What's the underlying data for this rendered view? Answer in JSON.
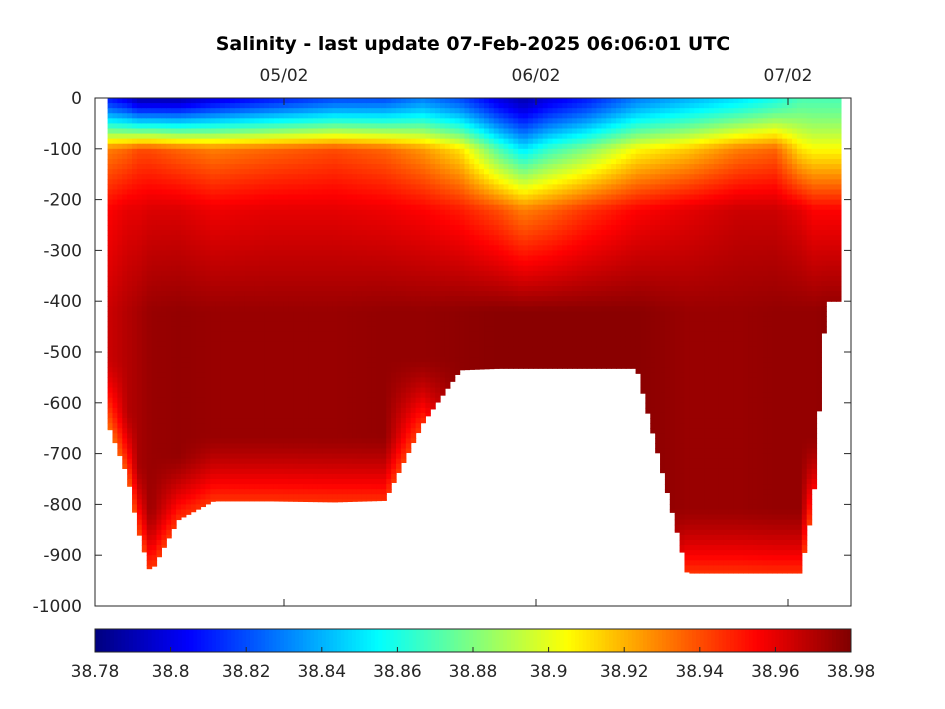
{
  "chart_data": {
    "type": "heatmap",
    "title": "Salinity - last update 07-Feb-2025 06:06:01 UTC",
    "x_axis": {
      "ticks": [
        {
          "label": "05/02",
          "value": 1.0
        },
        {
          "label": "06/02",
          "value": 2.0
        },
        {
          "label": "07/02",
          "value": 3.0
        }
      ],
      "range": [
        0.25,
        3.25
      ],
      "position": "top"
    },
    "y_axis": {
      "ticks": [
        0,
        -100,
        -200,
        -300,
        -400,
        -500,
        -600,
        -700,
        -800,
        -900,
        -1000
      ],
      "range": [
        -1000,
        0
      ],
      "label": ""
    },
    "colorbar": {
      "orientation": "horizontal",
      "position": "bottom",
      "colormap": "jet",
      "range": [
        38.78,
        38.98
      ],
      "ticks": [
        "38.78",
        "38.8",
        "38.82",
        "38.84",
        "38.86",
        "38.88",
        "38.9",
        "38.92",
        "38.94",
        "38.96",
        "38.98"
      ]
    },
    "profiles": [
      {
        "x": 0.3,
        "bottom": -640,
        "min": 38.81,
        "val100": 38.93,
        "val200": 38.955,
        "deep": 38.965
      },
      {
        "x": 0.38,
        "bottom": -745,
        "min": 38.8,
        "val100": 38.935,
        "val200": 38.96,
        "deep": 38.97
      },
      {
        "x": 0.42,
        "bottom": -850,
        "min": 38.79,
        "val100": 38.94,
        "val200": 38.96,
        "deep": 38.972
      },
      {
        "x": 0.47,
        "bottom": -935,
        "min": 38.79,
        "val100": 38.94,
        "val200": 38.962,
        "deep": 38.975
      },
      {
        "x": 0.58,
        "bottom": -830,
        "min": 38.79,
        "val100": 38.935,
        "val200": 38.962,
        "deep": 38.976
      },
      {
        "x": 0.72,
        "bottom": -793,
        "min": 38.8,
        "val100": 38.93,
        "val200": 38.958,
        "deep": 38.975
      },
      {
        "x": 0.95,
        "bottom": -793,
        "min": 38.81,
        "val100": 38.935,
        "val200": 38.96,
        "deep": 38.975
      },
      {
        "x": 1.2,
        "bottom": -795,
        "min": 38.82,
        "val100": 38.94,
        "val200": 38.96,
        "deep": 38.975
      },
      {
        "x": 1.4,
        "bottom": -792,
        "min": 38.82,
        "val100": 38.935,
        "val200": 38.958,
        "deep": 38.976
      },
      {
        "x": 1.55,
        "bottom": -640,
        "min": 38.83,
        "val100": 38.925,
        "val200": 38.955,
        "deep": 38.976
      },
      {
        "x": 1.7,
        "bottom": -535,
        "min": 38.82,
        "val100": 38.91,
        "val200": 38.95,
        "deep": 38.977
      },
      {
        "x": 1.85,
        "bottom": -532,
        "min": 38.8,
        "val100": 38.87,
        "val200": 38.94,
        "deep": 38.978
      },
      {
        "x": 1.95,
        "bottom": -532,
        "min": 38.79,
        "val100": 38.85,
        "val200": 38.93,
        "deep": 38.978
      },
      {
        "x": 2.05,
        "bottom": -532,
        "min": 38.8,
        "val100": 38.865,
        "val200": 38.935,
        "deep": 38.978
      },
      {
        "x": 2.2,
        "bottom": -532,
        "min": 38.81,
        "val100": 38.88,
        "val200": 38.945,
        "deep": 38.978
      },
      {
        "x": 2.4,
        "bottom": -532,
        "min": 38.83,
        "val100": 38.905,
        "val200": 38.955,
        "deep": 38.978
      },
      {
        "x": 2.6,
        "bottom": -935,
        "min": 38.84,
        "val100": 38.915,
        "val200": 38.96,
        "deep": 38.975
      },
      {
        "x": 2.8,
        "bottom": -935,
        "min": 38.85,
        "val100": 38.93,
        "val200": 38.965,
        "deep": 38.975
      },
      {
        "x": 2.95,
        "bottom": -935,
        "min": 38.86,
        "val100": 38.935,
        "val200": 38.965,
        "deep": 38.976
      },
      {
        "x": 3.05,
        "bottom": -935,
        "min": 38.87,
        "val100": 38.91,
        "val200": 38.96,
        "deep": 38.976
      },
      {
        "x": 3.1,
        "bottom": -795,
        "min": 38.87,
        "val100": 38.905,
        "val200": 38.955,
        "deep": 38.976
      },
      {
        "x": 3.15,
        "bottom": -400,
        "min": 38.87,
        "val100": 38.905,
        "val200": 38.955,
        "deep": 38.977
      },
      {
        "x": 3.21,
        "bottom": -400,
        "min": 38.87,
        "val100": 38.905,
        "val200": 38.955,
        "deep": 38.977
      }
    ],
    "grid": false,
    "legend": "none"
  }
}
